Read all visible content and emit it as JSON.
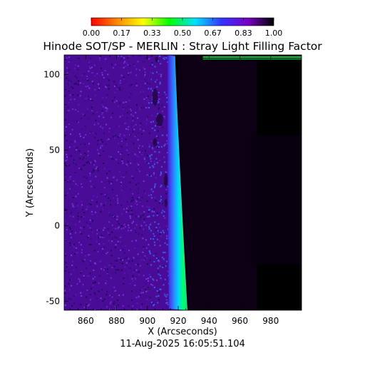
{
  "chart_data": {
    "type": "heatmap",
    "title": "Hinode SOT/SP - MERLIN : Stray Light Filling Factor",
    "xlabel": "X (Arcseconds)",
    "ylabel": "Y (Arcseconds)",
    "timestamp": "11-Aug-2025 16:05:51.104",
    "xlim": [
      846,
      1000
    ],
    "ylim": [
      -56,
      113
    ],
    "x_ticks": [
      860,
      880,
      900,
      920,
      940,
      960,
      980
    ],
    "y_ticks": [
      -50,
      0,
      50,
      100
    ],
    "colorbar": {
      "range": [
        0.0,
        1.0
      ],
      "tick_labels": [
        "0.00",
        "0.17",
        "0.33",
        "0.50",
        "0.67",
        "0.83",
        "1.00"
      ],
      "colormap": [
        "#ff0000",
        "#ff8800",
        "#ffff00",
        "#00ff00",
        "#00e0ff",
        "#3333ff",
        "#7a00c8",
        "#000000"
      ]
    },
    "features": {
      "limb_x_at_top": 918,
      "limb_x_at_bottom": 926,
      "disk_value": 0.85,
      "limb_value": 0.55,
      "offlimb_value": 1.0
    }
  }
}
